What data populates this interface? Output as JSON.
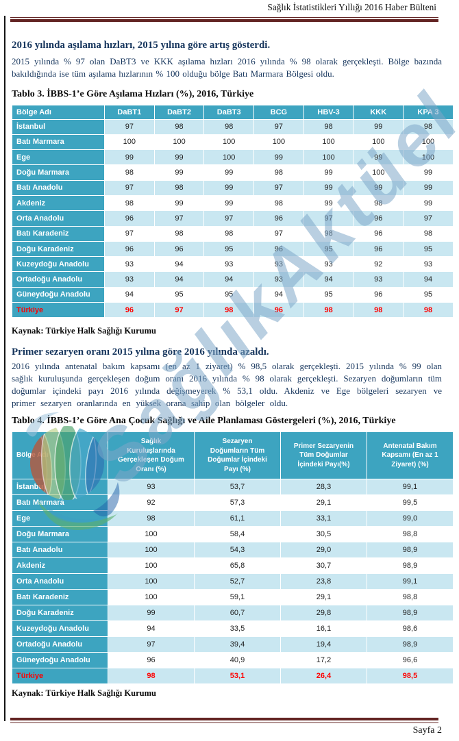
{
  "page": {
    "header_right": "Sağlık İstatistikleri Yıllığı 2016 Haber Bülteni",
    "footer_page_label": "Sayfa 2",
    "watermark_text": "SağlıkAktüel",
    "accent_colors": {
      "table_header_teal": "#3da4c0",
      "row_light_blue": "#c9e7f1",
      "total_row_red": "#fe0000",
      "page_rule_maroon": "#632423",
      "heading_navy": "#17365d"
    }
  },
  "section1": {
    "heading": "2016 yılında aşılama hızları, 2015 yılına göre artış gösterdi.",
    "paragraph": "2015 yılında % 97 olan DaBT3 ve KKK aşılama hızları 2016 yılında % 98 olarak gerçekleşti. Bölge bazında bakıldığında ise tüm aşılama hızlarının % 100 olduğu bölge Batı Marmara Bölgesi oldu.",
    "table_caption": "Tablo 3. İBBS-1’e Göre Aşılama Hızları (%), 2016, Türkiye",
    "source_note": "Kaynak: Türkiye Halk Sağlığı Kurumu"
  },
  "section2": {
    "heading": "Primer sezaryen oranı 2015 yılına göre 2016 yılında azaldı.",
    "paragraph": "2016 yılında antenatal bakım kapsamı (en az 1 ziyaret)  % 98,5 olarak gerçekleşti. 2015 yılında % 99 olan sağlık kuruluşunda gerçekleşen doğum oranı 2016 yılında % 98 olarak gerçekleşti. Sezaryen doğumların tüm doğumlar içindeki payı 2016 yılında değişmeyerek % 53,1 oldu. Akdeniz ve Ege bölgeleri sezaryen ve primer sezaryen oranlarında en yüksek orana sahip olan bölgeler oldu.",
    "table_caption": "Tablo 4. İBBS-1’e Göre Ana Çocuk Sağlığı ve Aile Planlaması Göstergeleri (%), 2016, Türkiye",
    "source_note": "Kaynak: Türkiye Halk Sağlığı Kurumu"
  },
  "chart_data": [
    {
      "type": "table",
      "title": "Tablo 3. İBBS-1’e Göre Aşılama Hızları (%), 2016, Türkiye",
      "columns": [
        "Bölge Adı",
        "DaBT1",
        "DaBT2",
        "DaBT3",
        "BCG",
        "HBV-3",
        "KKK",
        "KPA 3"
      ],
      "rows": [
        [
          "İstanbul",
          "97",
          "98",
          "98",
          "97",
          "98",
          "99",
          "98"
        ],
        [
          "Batı Marmara",
          "100",
          "100",
          "100",
          "100",
          "100",
          "100",
          "100"
        ],
        [
          "Ege",
          "99",
          "99",
          "100",
          "99",
          "100",
          "99",
          "100"
        ],
        [
          "Doğu Marmara",
          "98",
          "99",
          "99",
          "98",
          "99",
          "100",
          "99"
        ],
        [
          "Batı Anadolu",
          "97",
          "98",
          "99",
          "97",
          "99",
          "99",
          "99"
        ],
        [
          "Akdeniz",
          "98",
          "99",
          "99",
          "98",
          "99",
          "98",
          "99"
        ],
        [
          "Orta Anadolu",
          "96",
          "97",
          "97",
          "96",
          "97",
          "96",
          "97"
        ],
        [
          "Batı Karadeniz",
          "97",
          "98",
          "98",
          "97",
          "98",
          "96",
          "98"
        ],
        [
          "Doğu Karadeniz",
          "96",
          "96",
          "95",
          "96",
          "95",
          "96",
          "95"
        ],
        [
          "Kuzeydoğu Anadolu",
          "93",
          "94",
          "93",
          "93",
          "93",
          "92",
          "93"
        ],
        [
          "Ortadoğu Anadolu",
          "93",
          "94",
          "94",
          "93",
          "94",
          "93",
          "94"
        ],
        [
          "Güneydoğu Anadolu",
          "94",
          "95",
          "95",
          "94",
          "95",
          "96",
          "95"
        ],
        [
          "Türkiye",
          "96",
          "97",
          "98",
          "96",
          "98",
          "98",
          "98"
        ]
      ],
      "total_row_label": "Türkiye"
    },
    {
      "type": "table",
      "title": "Tablo 4. İBBS-1’e Göre Ana Çocuk Sağlığı ve Aile Planlaması Göstergeleri (%), 2016, Türkiye",
      "columns": [
        "Bölge Adı",
        "Sağlık\nKuruluşlarında\nGerçekleşen Doğum\nOranı (%)",
        "Sezaryen\nDoğumların Tüm\nDoğumlar İçindeki\nPayı (%)",
        "Primer Sezaryenin\nTüm Doğumlar\nİçindeki Payı(%)",
        "Antenatal Bakım\nKapsamı (En az 1\nZiyaret) (%)"
      ],
      "rows": [
        [
          "İstanbul",
          "93",
          "53,7",
          "28,3",
          "99,1"
        ],
        [
          "Batı Marmara",
          "92",
          "57,3",
          "29,1",
          "99,5"
        ],
        [
          "Ege",
          "98",
          "61,1",
          "33,1",
          "99,0"
        ],
        [
          "Doğu Marmara",
          "100",
          "58,4",
          "30,5",
          "98,8"
        ],
        [
          "Batı Anadolu",
          "100",
          "54,3",
          "29,0",
          "98,9"
        ],
        [
          "Akdeniz",
          "100",
          "65,8",
          "30,7",
          "98,9"
        ],
        [
          "Orta Anadolu",
          "100",
          "52,7",
          "23,8",
          "99,1"
        ],
        [
          "Batı Karadeniz",
          "100",
          "59,1",
          "29,1",
          "98,8"
        ],
        [
          "Doğu Karadeniz",
          "99",
          "60,7",
          "29,8",
          "98,9"
        ],
        [
          "Kuzeydoğu Anadolu",
          "94",
          "33,5",
          "16,1",
          "98,6"
        ],
        [
          "Ortadoğu Anadolu",
          "97",
          "39,4",
          "19,4",
          "98,9"
        ],
        [
          "Güneydoğu Anadolu",
          "96",
          "40,9",
          "17,2",
          "96,6"
        ],
        [
          "Türkiye",
          "98",
          "53,1",
          "26,4",
          "98,5"
        ]
      ],
      "total_row_label": "Türkiye"
    }
  ]
}
